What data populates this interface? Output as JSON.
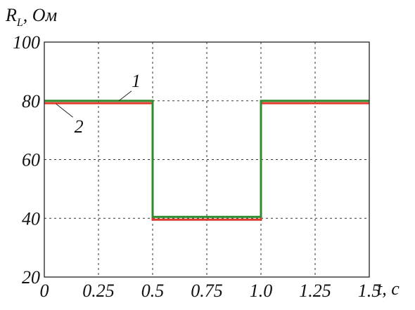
{
  "chart_data": {
    "type": "line",
    "ylabel_main": "R",
    "ylabel_sub": "L",
    "ylabel_unit": ", Ом",
    "xlabel": "t, c",
    "xlim": [
      0,
      1.5
    ],
    "ylim": [
      20,
      100
    ],
    "xticks": [
      0,
      0.25,
      0.5,
      0.75,
      1.0,
      1.25,
      1.5
    ],
    "xtick_labels": [
      "0",
      "0.25",
      "0.5",
      "0.75",
      "1.0",
      "1.25",
      "1.5"
    ],
    "yticks": [
      20,
      40,
      60,
      80,
      100
    ],
    "ytick_labels": [
      "20",
      "40",
      "60",
      "80",
      "100"
    ],
    "grid": true,
    "series": [
      {
        "name": "1",
        "color": "#2e8b2e",
        "x": [
          0,
          0.5,
          0.5,
          1.0,
          1.0,
          1.5
        ],
        "y": [
          80,
          80,
          40.5,
          40.5,
          80,
          80
        ]
      },
      {
        "name": "2",
        "color": "#e23a2a",
        "x": [
          0,
          0.5,
          0.5,
          1.0,
          1.0,
          1.5
        ],
        "y": [
          79.2,
          79.2,
          39.5,
          39.5,
          79.2,
          79.2
        ]
      }
    ],
    "annotations": [
      {
        "text": "1",
        "series": "1"
      },
      {
        "text": "2",
        "series": "2"
      }
    ]
  }
}
